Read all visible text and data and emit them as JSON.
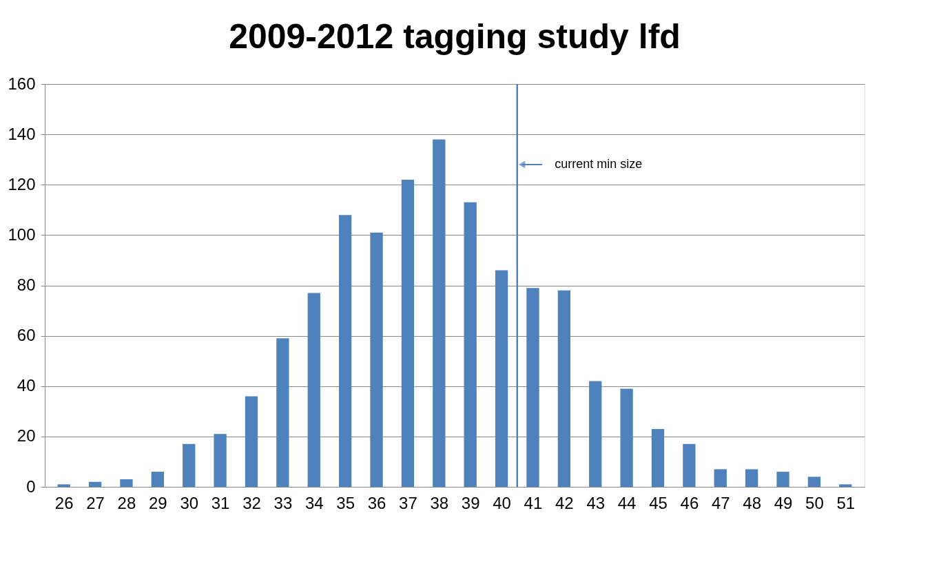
{
  "chart_data": {
    "type": "bar",
    "title": "2009-2012 tagging study lfd",
    "x": [
      26,
      27,
      28,
      29,
      30,
      31,
      32,
      33,
      34,
      35,
      36,
      37,
      38,
      39,
      40,
      41,
      42,
      43,
      44,
      45,
      46,
      47,
      48,
      49,
      50,
      51
    ],
    "xlim": [
      25.5,
      51.5
    ],
    "xticks": [
      26,
      27,
      28,
      29,
      30,
      31,
      32,
      33,
      34,
      35,
      36,
      37,
      38,
      39,
      40,
      41,
      42,
      43,
      44,
      45,
      46,
      47,
      48,
      49,
      50,
      51
    ],
    "values": [
      1,
      2,
      3,
      6,
      17,
      21,
      36,
      59,
      77,
      108,
      101,
      122,
      138,
      113,
      86,
      79,
      78,
      42,
      39,
      23,
      17,
      7,
      7,
      6,
      4,
      1
    ],
    "color": "#4f81bd",
    "ylim": [
      0,
      160
    ],
    "yticks": [
      0,
      20,
      40,
      60,
      80,
      100,
      120,
      140,
      160
    ],
    "grid": "y",
    "ref_lines": [
      {
        "axis": "x",
        "value": 40.5,
        "label": "current min size",
        "color": "#4f81bd"
      }
    ]
  }
}
